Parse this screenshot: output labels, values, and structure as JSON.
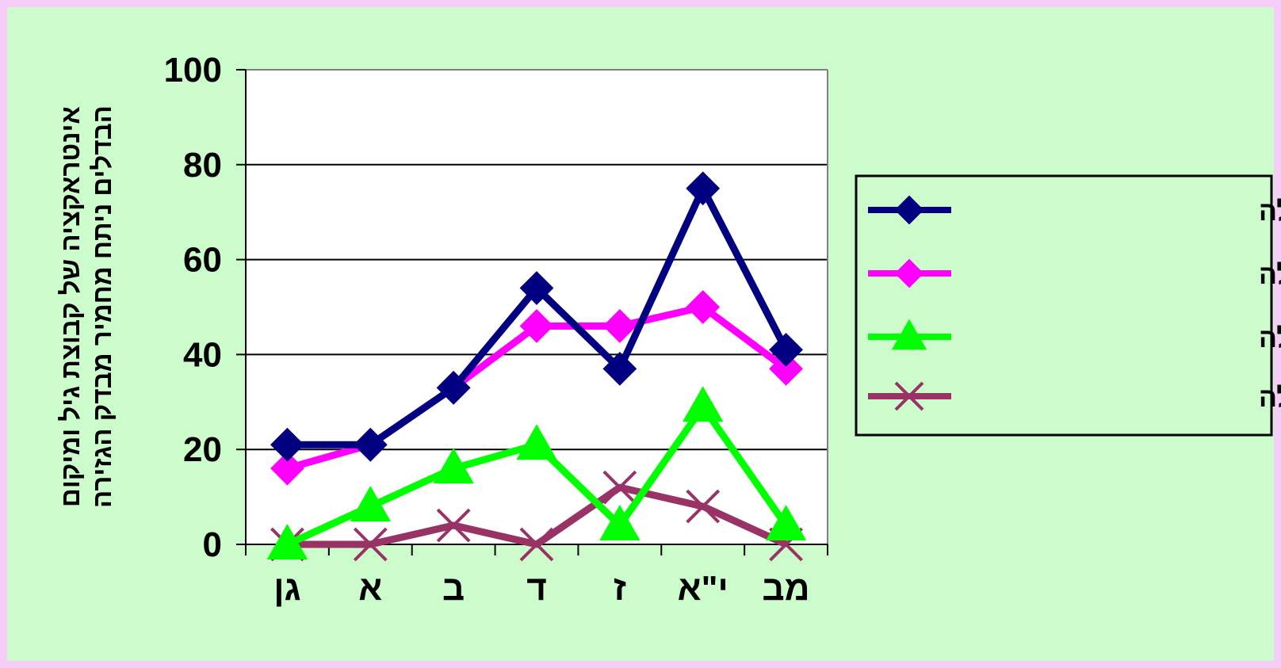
{
  "chart_data": {
    "type": "line",
    "categories": [
      "גן",
      "א",
      "ב",
      "ד",
      "ז",
      "י\"א",
      "מב"
    ],
    "ylim": [
      0,
      100
    ],
    "yticks": [
      "0",
      "20",
      "40",
      "60",
      "80",
      "100"
    ],
    "ylabel_line1": "אינטראקציה של קבוצת גיל ומיקום",
    "ylabel_line2": "הבדלים ניתח מחמיר מבדק הגזירה",
    "grid": true,
    "legend_position": "right",
    "series": [
      {
        "name": "בנים התחלת מילה",
        "color": "#000080",
        "marker": "diamond",
        "values": [
          21,
          21,
          33,
          54,
          37,
          75,
          41
        ]
      },
      {
        "name": "בנות התחלת מילה",
        "color": "#ff00ff",
        "marker": "diamond",
        "values": [
          16,
          21,
          33,
          46,
          46,
          50,
          37
        ]
      },
      {
        "name": "בנים אמצע מילה",
        "color": "#00ff00",
        "marker": "triangle",
        "values": [
          0,
          8,
          16,
          21,
          4,
          29,
          4
        ]
      },
      {
        "name": "בנות אמצע מילה",
        "color": "#993366",
        "marker": "x",
        "values": [
          0,
          0,
          4,
          0,
          12,
          8,
          0
        ]
      }
    ]
  }
}
